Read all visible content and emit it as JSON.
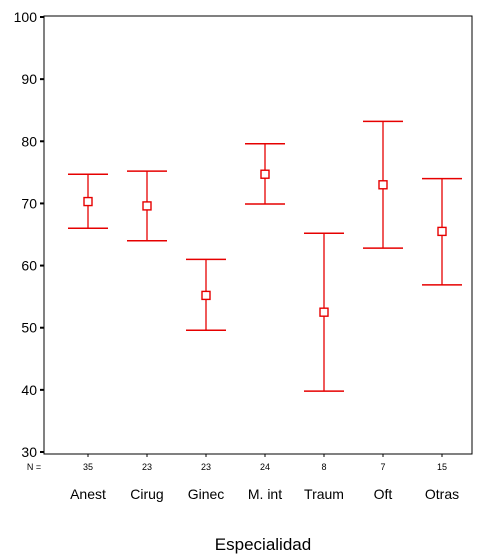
{
  "chart_data": {
    "type": "errorbar",
    "title": "",
    "xlabel": "Especialidad",
    "ylabel": "",
    "ylim": [
      30,
      100
    ],
    "yticks": [
      30,
      40,
      50,
      60,
      70,
      80,
      90,
      100
    ],
    "grid": false,
    "legend": "none",
    "color": "#e60000",
    "n_prefix": "N =",
    "categories": [
      "Anest",
      "Cirug",
      "Ginec",
      "M. int",
      "Traum",
      "Oft",
      "Otras"
    ],
    "n_values": [
      "35",
      "23",
      "23",
      "24",
      "8",
      "7",
      "15"
    ],
    "mean": [
      70.3,
      69.6,
      55.2,
      74.7,
      52.5,
      73.0,
      65.5
    ],
    "lower": [
      66.0,
      64.0,
      49.6,
      69.9,
      39.8,
      62.8,
      56.9
    ],
    "upper": [
      74.7,
      75.2,
      61.0,
      79.6,
      65.2,
      83.2,
      74.0
    ]
  }
}
